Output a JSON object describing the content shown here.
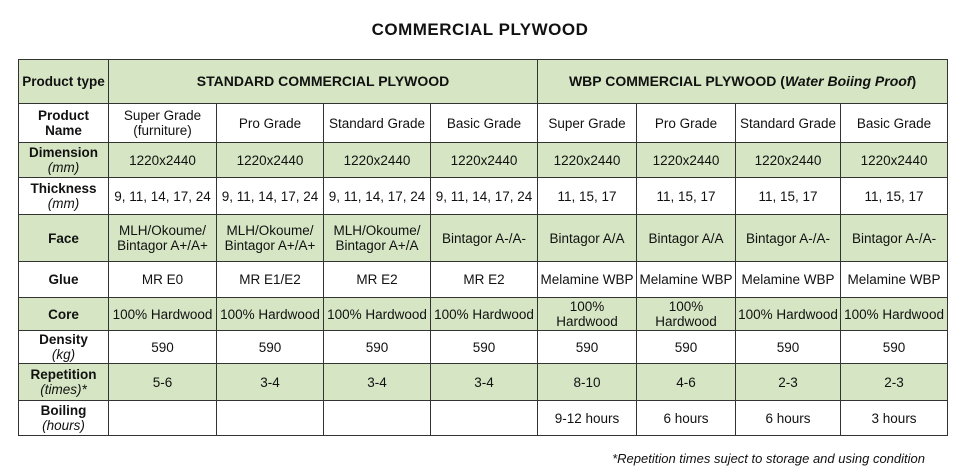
{
  "title": "COMMERCIAL PLYWOOD",
  "header": {
    "label": "Product type",
    "standard": "STANDARD COMMERCIAL PLYWOOD",
    "wbp": "WBP COMMERCIAL PLYWOOD (",
    "wbp_italic": "Water Boiing Proof",
    "wbp_close": ")"
  },
  "names": {
    "label": "Product Name",
    "values": [
      "Super Grade (furniture)",
      "Pro Grade",
      "Standard Grade",
      "Basic Grade",
      "Super Grade",
      "Pro Grade",
      "Standard Grade",
      "Basic Grade"
    ]
  },
  "rows": [
    {
      "label": "Dimension",
      "unit": "(mm)",
      "values": [
        "1220x2440",
        "1220x2440",
        "1220x2440",
        "1220x2440",
        "1220x2440",
        "1220x2440",
        "1220x2440",
        "1220x2440"
      ]
    },
    {
      "label": "Thickness",
      "unit": "(mm)",
      "values": [
        "9, 11, 14, 17, 24",
        "9, 11, 14, 17, 24",
        "9, 11, 14, 17, 24",
        "9, 11, 14, 17, 24",
        "11, 15, 17",
        "11, 15, 17",
        "11, 15, 17",
        "11, 15, 17"
      ]
    },
    {
      "label": "Face",
      "unit": "",
      "values": [
        "MLH/Okoume/ Bintagor A+/A+",
        "MLH/Okoume/ Bintagor A+/A+",
        "MLH/Okoume/ Bintagor A+/A",
        "Bintagor A-/A-",
        "Bintagor A/A",
        "Bintagor A/A",
        "Bintagor A-/A-",
        "Bintagor A-/A-"
      ]
    },
    {
      "label": "Glue",
      "unit": "",
      "values": [
        "MR E0",
        "MR E1/E2",
        "MR E2",
        "MR E2",
        "Melamine WBP",
        "Melamine WBP",
        "Melamine WBP",
        "Melamine WBP"
      ]
    },
    {
      "label": "Core",
      "unit": "",
      "values": [
        "100% Hardwood",
        "100% Hardwood",
        "100% Hardwood",
        "100% Hardwood",
        "100% Hardwood",
        "100% Hardwood",
        "100% Hardwood",
        "100% Hardwood"
      ]
    },
    {
      "label": "Density",
      "unit": "(kg)",
      "values": [
        "590",
        "590",
        "590",
        "590",
        "590",
        "590",
        "590",
        "590"
      ]
    },
    {
      "label": "Repetition",
      "unit": "(times)*",
      "values": [
        "5-6",
        "3-4",
        "3-4",
        "3-4",
        "8-10",
        "4-6",
        "2-3",
        "2-3"
      ]
    },
    {
      "label": "Boiling",
      "unit": "(hours)",
      "values": [
        "",
        "",
        "",
        "",
        "9-12 hours",
        "6 hours",
        "6 hours",
        "3 hours"
      ]
    }
  ],
  "footnote": "*Repetition times suject to storage and using condition",
  "colors": {
    "green_row": "#d6e6c4"
  }
}
